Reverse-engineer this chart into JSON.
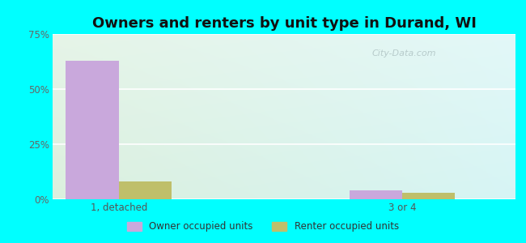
{
  "title": "Owners and renters by unit type in Durand, WI",
  "categories": [
    "1, detached",
    "3 or 4"
  ],
  "owner_values": [
    63.0,
    4.0
  ],
  "renter_values": [
    8.0,
    3.0
  ],
  "owner_color": "#c9a8dc",
  "renter_color": "#bfbf6a",
  "ylim": [
    0,
    75
  ],
  "yticks": [
    0,
    25,
    50,
    75
  ],
  "ytick_labels": [
    "0%",
    "25%",
    "50%",
    "75%"
  ],
  "bar_width": 0.28,
  "title_fontsize": 13,
  "legend_labels": [
    "Owner occupied units",
    "Renter occupied units"
  ],
  "watermark": "City-Data.com",
  "outer_bg": "#00ffff",
  "plot_bg_left": "#ddf0dd",
  "plot_bg_right": "#d0f0f0",
  "grid_color": "#ffffff",
  "x_positions": [
    0.25,
    1.75
  ],
  "xlim": [
    -0.1,
    2.35
  ]
}
